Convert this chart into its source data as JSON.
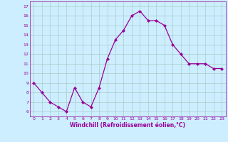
{
  "x": [
    0,
    1,
    2,
    3,
    4,
    5,
    6,
    7,
    8,
    9,
    10,
    11,
    12,
    13,
    14,
    15,
    16,
    17,
    18,
    19,
    20,
    21,
    22,
    23
  ],
  "y": [
    9,
    8,
    7,
    6.5,
    6,
    8.5,
    7,
    6.5,
    8.5,
    11.5,
    13.5,
    14.5,
    16,
    16.5,
    15.5,
    15.5,
    15,
    13,
    12,
    11,
    11,
    11,
    10.5,
    10.5
  ],
  "line_color": "#990099",
  "marker": "D",
  "marker_size": 2.0,
  "bg_color": "#cceeff",
  "grid_color": "#aacccc",
  "xlabel": "Windchill (Refroidissement éolien,°C)",
  "xlabel_color": "#990099",
  "tick_color": "#990099",
  "yticks": [
    6,
    7,
    8,
    9,
    10,
    11,
    12,
    13,
    14,
    15,
    16,
    17
  ],
  "xticks": [
    0,
    1,
    2,
    3,
    4,
    5,
    6,
    7,
    8,
    9,
    10,
    11,
    12,
    13,
    14,
    15,
    16,
    17,
    18,
    19,
    20,
    21,
    22,
    23
  ],
  "ylim": [
    5.5,
    17.5
  ],
  "xlim": [
    -0.5,
    23.5
  ]
}
